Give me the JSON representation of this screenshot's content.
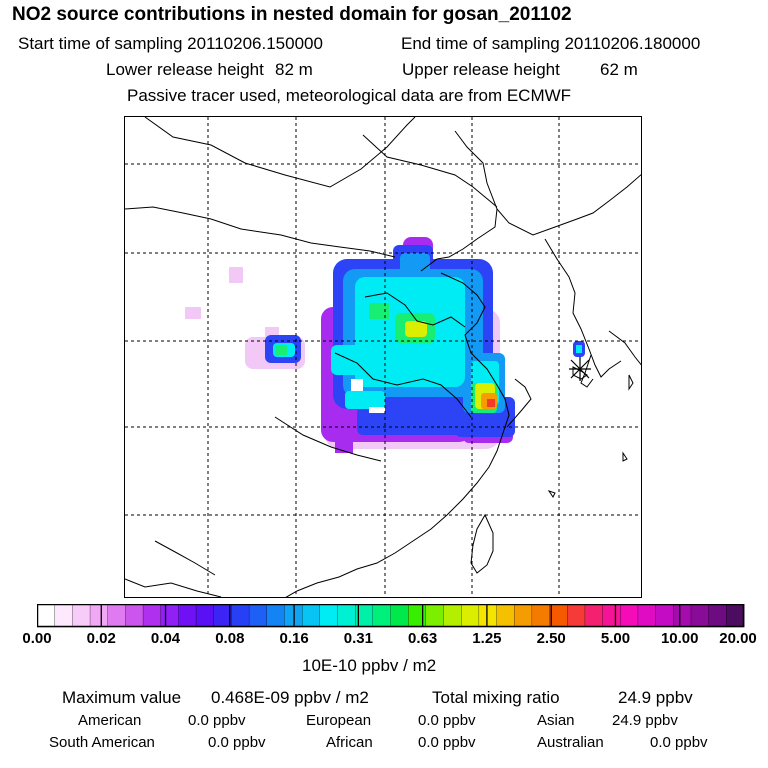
{
  "header": {
    "title": "NO2 source contributions in nested domain for gosan_201102",
    "start_label": "Start time of sampling 20110206.150000",
    "end_label": "End time of sampling 20110206.180000",
    "lower_label": "Lower release height",
    "lower_value": "82 m",
    "upper_label": "Upper release height",
    "upper_value": "62 m",
    "note": "Passive tracer used, meteorological data are from ECMWF"
  },
  "colors": {
    "scale": [
      "#ffffff",
      "#fde8fd",
      "#f8ccf8",
      "#f0a8f5",
      "#e07af0",
      "#cc55ee",
      "#b030f0",
      "#9020f5",
      "#7010f5",
      "#5a10f5",
      "#3c24f5",
      "#2840f5",
      "#1e60f5",
      "#1484f5",
      "#10a4f5",
      "#08c4f5",
      "#00ecf5",
      "#00f0d4",
      "#00f0a8",
      "#00f07c",
      "#00e84c",
      "#38ee00",
      "#7cee00",
      "#b4ee00",
      "#dcee00",
      "#f4e400",
      "#f5c000",
      "#f59c00",
      "#f57a00",
      "#f55a00",
      "#f53a38",
      "#f52070",
      "#f51498",
      "#f50cb8",
      "#e00cc4",
      "#c40cc4",
      "#a40cae",
      "#880c98",
      "#6c0c80",
      "#4c0c60"
    ],
    "accent_red": "#f53a2a"
  },
  "colorbar": {
    "ticks": [
      "0.00",
      "0.02",
      "0.04",
      "0.08",
      "0.16",
      "0.31",
      "0.63",
      "1.25",
      "2.50",
      "5.00",
      "10.00",
      "20.00"
    ],
    "unit": "10E-10 ppbv / m2"
  },
  "footer": {
    "max_label": "Maximum value",
    "max_value": "0.468E-09 ppbv / m2",
    "total_label": "Total mixing ratio",
    "total_value": "24.9 ppbv",
    "regions": [
      {
        "name": "American",
        "value": "0.0 ppbv"
      },
      {
        "name": "European",
        "value": "0.0 ppbv"
      },
      {
        "name": "Asian",
        "value": "24.9 ppbv"
      },
      {
        "name": "South American",
        "value": "0.0 ppbv"
      },
      {
        "name": "African",
        "value": "0.0 ppbv"
      },
      {
        "name": "Australian",
        "value": "0.0 ppbv"
      }
    ]
  }
}
